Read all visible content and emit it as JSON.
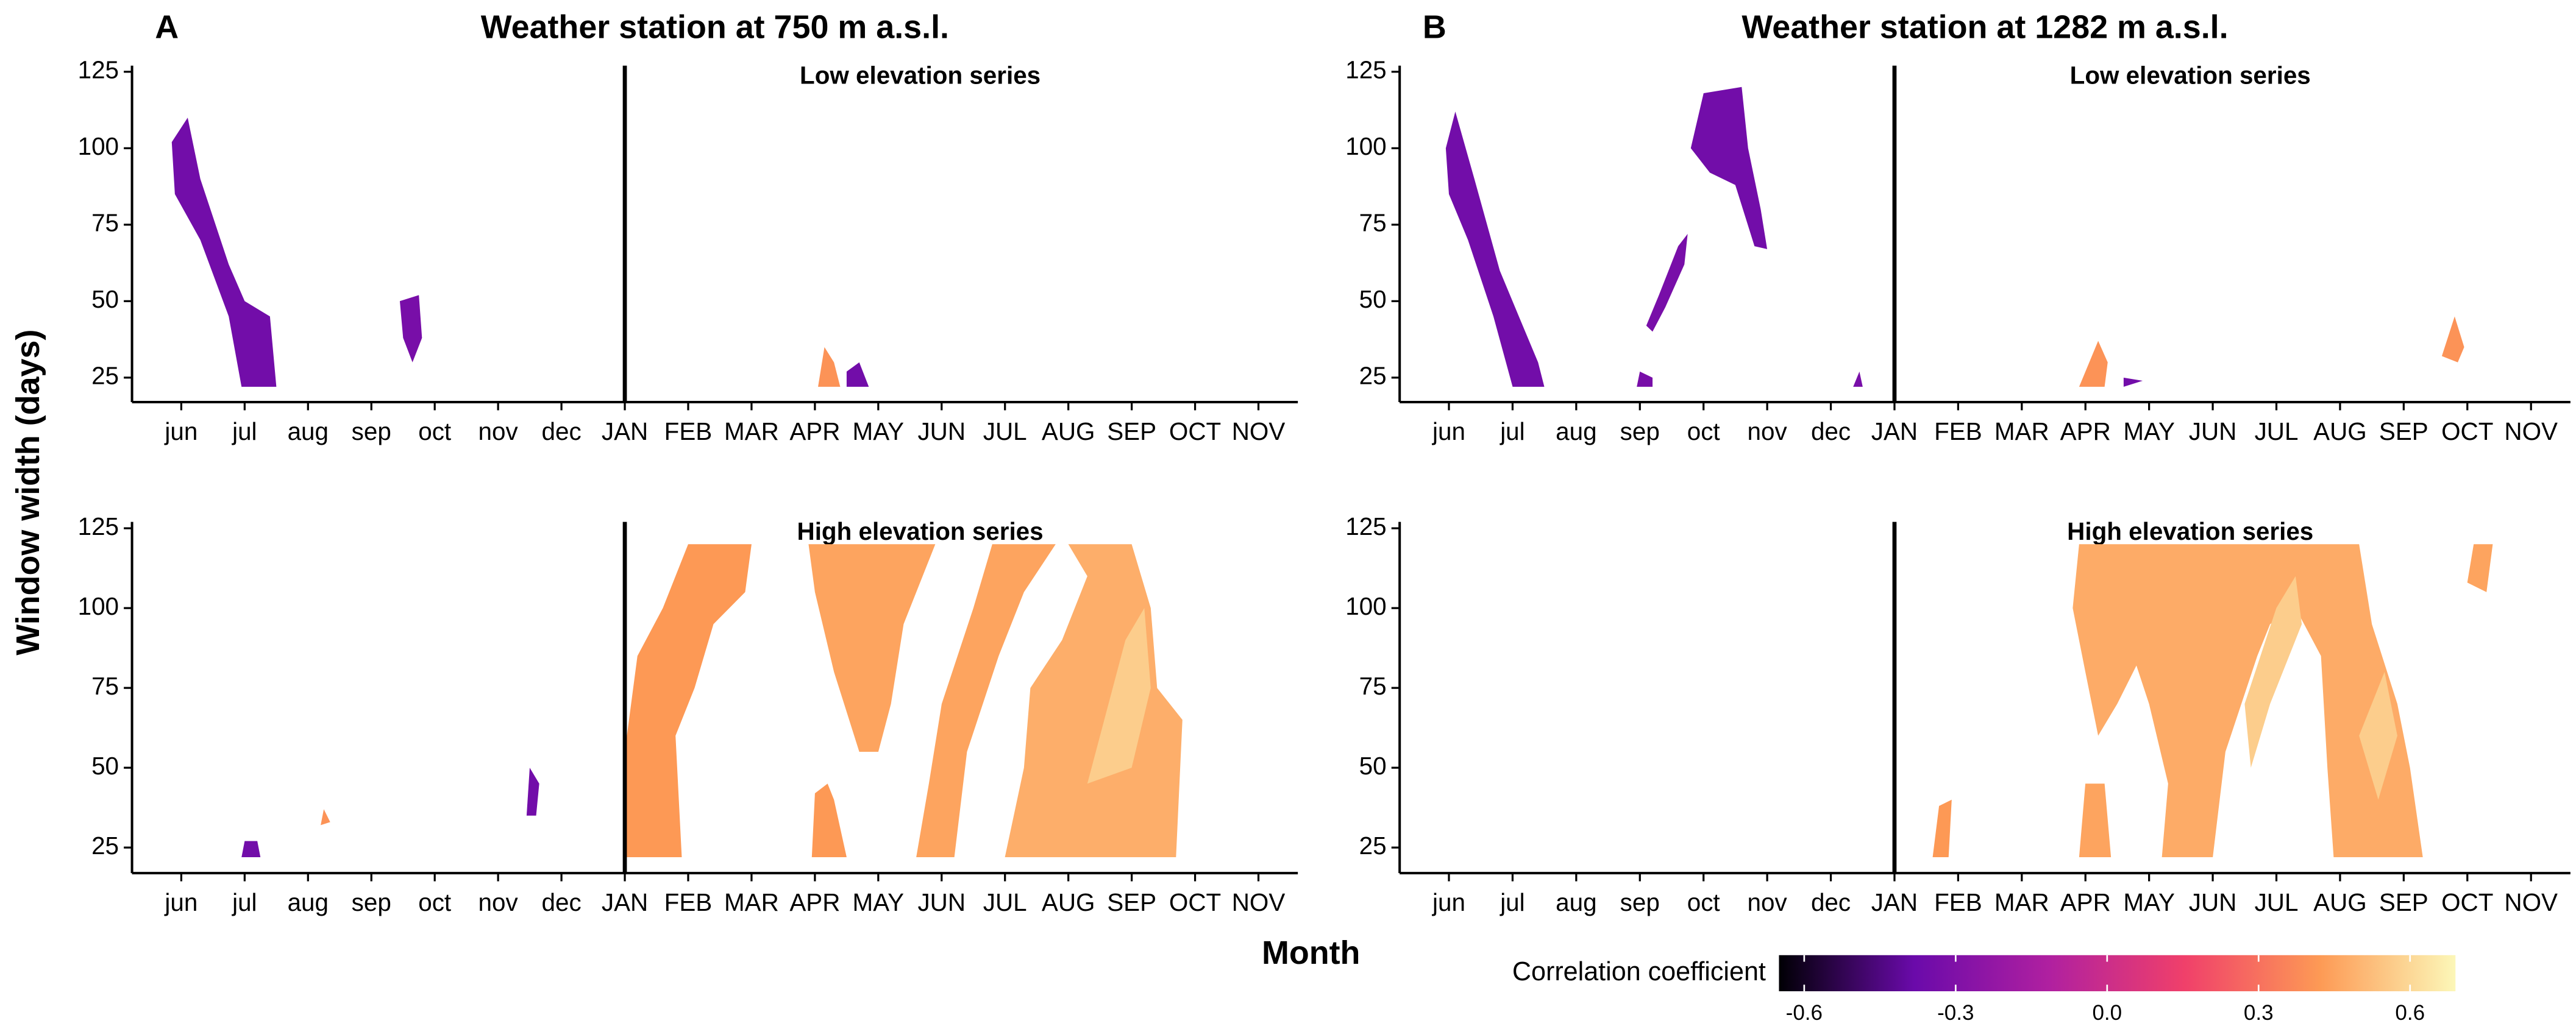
{
  "ylabel": "Window width (days)",
  "xlabel": "Month",
  "colorbar": {
    "title": "Correlation coefficient",
    "lim": [
      -0.65,
      0.69
    ],
    "colors": [
      "#000004",
      "#6a0aaa",
      "#b020a0",
      "#f0406a",
      "#fd9a55",
      "#fcf7b8"
    ],
    "ticks": [
      -0.6,
      -0.3,
      {
        "value": 0,
        "label": "0.0"
      },
      0.3,
      0.6
    ]
  },
  "chart_data": [
    {
      "type": "heatmap",
      "panel": "A",
      "title": "Weather station at 750 m a.s.l.",
      "subtitle": "Low elevation series",
      "categories": [
        "jun",
        "jul",
        "aug",
        "sep",
        "oct",
        "nov",
        "dec",
        "JAN",
        "FEB",
        "MAR",
        "APR",
        "MAY",
        "JUN",
        "JUL",
        "AUG",
        "SEP",
        "OCT",
        "NOV"
      ],
      "ylim": [
        17,
        127
      ],
      "yticks": [
        25,
        50,
        75,
        100,
        125
      ],
      "vline": 7,
      "regions": [
        {
          "x": [
            -0.15,
            0.1,
            0.3,
            0.75,
            1.0,
            1.4,
            1.5,
            0.95,
            0.75,
            0.3,
            -0.1
          ],
          "y": [
            102,
            110,
            90,
            62,
            50,
            45,
            22,
            22,
            45,
            70,
            85
          ],
          "value": -0.35
        },
        {
          "x": [
            3.45,
            3.75,
            3.8,
            3.65,
            3.5
          ],
          "y": [
            50,
            52,
            38,
            30,
            38
          ],
          "value": -0.33
        },
        {
          "x": [
            10.05,
            10.15,
            10.3,
            10.4
          ],
          "y": [
            22,
            35,
            30,
            22
          ],
          "value": 0.4
        },
        {
          "x": [
            10.5,
            10.5,
            10.7,
            10.85
          ],
          "y": [
            22,
            27,
            30,
            22
          ],
          "value": -0.35
        }
      ]
    },
    {
      "type": "heatmap",
      "subtitle": "High elevation series",
      "categories": [
        "jun",
        "jul",
        "aug",
        "sep",
        "oct",
        "nov",
        "dec",
        "JAN",
        "FEB",
        "MAR",
        "APR",
        "MAY",
        "JUN",
        "JUL",
        "AUG",
        "SEP",
        "OCT",
        "NOV"
      ],
      "ylim": [
        17,
        127
      ],
      "yticks": [
        25,
        50,
        75,
        100,
        125
      ],
      "vline": 7,
      "regions": [
        {
          "x": [
            7.0,
            7.0,
            7.2,
            7.6,
            8.0,
            9.0,
            8.9,
            8.4,
            8.1,
            7.8,
            7.9
          ],
          "y": [
            22,
            55,
            85,
            100,
            120,
            120,
            105,
            95,
            75,
            60,
            22
          ],
          "value": 0.42
        },
        {
          "x": [
            9.9,
            11.9,
            11.4,
            11.2,
            11.0,
            10.7,
            10.3,
            10.0
          ],
          "y": [
            120,
            120,
            95,
            70,
            55,
            55,
            80,
            105
          ],
          "value": 0.45
        },
        {
          "x": [
            9.95,
            10.0,
            10.2,
            10.3,
            10.5
          ],
          "y": [
            22,
            42,
            45,
            40,
            22
          ],
          "value": 0.42
        },
        {
          "x": [
            11.6,
            11.8,
            12.0,
            12.5,
            12.8,
            13.8,
            13.3,
            12.9,
            12.4,
            12.2
          ],
          "y": [
            22,
            45,
            70,
            100,
            120,
            120,
            105,
            85,
            55,
            22
          ],
          "value": 0.45
        },
        {
          "x": [
            13.0,
            13.3,
            13.4,
            13.9,
            14.3,
            14.0,
            15.0,
            15.3,
            15.4,
            15.8,
            15.7
          ],
          "y": [
            22,
            50,
            75,
            90,
            110,
            120,
            120,
            100,
            75,
            65,
            22
          ],
          "value": 0.48
        },
        {
          "x": [
            14.3,
            14.9,
            15.2,
            15.3,
            15.0
          ],
          "y": [
            45,
            90,
            100,
            75,
            50
          ],
          "value": 0.57
        },
        {
          "x": [
            5.45,
            5.5,
            5.65,
            5.6
          ],
          "y": [
            35,
            50,
            45,
            35
          ],
          "value": -0.35
        },
        {
          "x": [
            0.95,
            1.0,
            1.2,
            1.25
          ],
          "y": [
            22,
            27,
            27,
            22
          ],
          "value": -0.35
        },
        {
          "x": [
            2.2,
            2.25,
            2.35
          ],
          "y": [
            32,
            37,
            33
          ],
          "value": 0.4
        }
      ]
    },
    {
      "type": "heatmap",
      "panel": "B",
      "title": "Weather station at 1282 m a.s.l.",
      "subtitle": "Low elevation series",
      "categories": [
        "jun",
        "jul",
        "aug",
        "sep",
        "oct",
        "nov",
        "dec",
        "JAN",
        "FEB",
        "MAR",
        "APR",
        "MAY",
        "JUN",
        "JUL",
        "AUG",
        "SEP",
        "OCT",
        "NOV"
      ],
      "ylim": [
        17,
        127
      ],
      "yticks": [
        25,
        50,
        75,
        100,
        125
      ],
      "vline": 7,
      "regions": [
        {
          "x": [
            -0.05,
            0.1,
            0.4,
            0.8,
            1.1,
            1.4,
            1.5,
            1.0,
            0.7,
            0.3,
            0.0
          ],
          "y": [
            100,
            112,
            90,
            60,
            45,
            30,
            22,
            22,
            45,
            70,
            85
          ],
          "value": -0.35
        },
        {
          "x": [
            3.8,
            4.0,
            4.6,
            4.7,
            4.9,
            5.0,
            4.8,
            4.5,
            4.1
          ],
          "y": [
            100,
            118,
            120,
            100,
            80,
            67,
            68,
            88,
            92
          ],
          "value": -0.35
        },
        {
          "x": [
            3.1,
            3.3,
            3.6,
            3.75,
            3.7,
            3.4,
            3.2
          ],
          "y": [
            42,
            52,
            68,
            72,
            62,
            48,
            40
          ],
          "value": -0.33
        },
        {
          "x": [
            2.95,
            3.0,
            3.2,
            3.2
          ],
          "y": [
            22,
            27,
            25,
            22
          ],
          "value": -0.33
        },
        {
          "x": [
            6.35,
            6.45,
            6.5
          ],
          "y": [
            22,
            27,
            22
          ],
          "value": -0.33
        },
        {
          "x": [
            9.9,
            10.2,
            10.35,
            10.3
          ],
          "y": [
            22,
            37,
            30,
            22
          ],
          "value": 0.4
        },
        {
          "x": [
            10.6,
            10.6,
            10.9
          ],
          "y": [
            22,
            25,
            24
          ],
          "value": -0.35
        },
        {
          "x": [
            15.6,
            15.8,
            15.95,
            15.85
          ],
          "y": [
            32,
            45,
            35,
            30
          ],
          "value": 0.4
        }
      ]
    },
    {
      "type": "heatmap",
      "subtitle": "High elevation series",
      "categories": [
        "jun",
        "jul",
        "aug",
        "sep",
        "oct",
        "nov",
        "dec",
        "JAN",
        "FEB",
        "MAR",
        "APR",
        "MAY",
        "JUN",
        "JUL",
        "AUG",
        "SEP",
        "OCT",
        "NOV"
      ],
      "ylim": [
        17,
        127
      ],
      "yticks": [
        25,
        50,
        75,
        100,
        125
      ],
      "vline": 7,
      "regions": [
        {
          "x": [
            9.9,
            14.3,
            14.5,
            14.9,
            15.1,
            15.3,
            13.9,
            13.8,
            13.7,
            13.3,
            12.9,
            12.7,
            12.2,
            12.0,
            11.2,
            11.3,
            11.0,
            10.8,
            10.5,
            10.2,
            10.0,
            9.8
          ],
          "y": [
            120,
            120,
            95,
            70,
            50,
            22,
            22,
            50,
            85,
            100,
            95,
            85,
            55,
            22,
            22,
            45,
            70,
            82,
            70,
            60,
            80,
            100
          ],
          "value": 0.47
        },
        {
          "x": [
            9.9,
            10.0,
            10.3,
            10.4
          ],
          "y": [
            22,
            45,
            45,
            22
          ],
          "value": 0.45
        },
        {
          "x": [
            12.6,
            12.5,
            13.0,
            13.3,
            13.4,
            12.9
          ],
          "y": [
            50,
            70,
            100,
            110,
            95,
            70
          ],
          "value": 0.57
        },
        {
          "x": [
            14.3,
            14.7,
            14.9,
            14.6
          ],
          "y": [
            60,
            80,
            60,
            40
          ],
          "value": 0.57
        },
        {
          "x": [
            7.6,
            7.7,
            7.9,
            7.85
          ],
          "y": [
            22,
            38,
            40,
            22
          ],
          "value": 0.42
        },
        {
          "x": [
            16.0,
            16.1,
            16.4,
            16.3
          ],
          "y": [
            108,
            120,
            120,
            105
          ],
          "value": 0.45
        }
      ]
    }
  ]
}
